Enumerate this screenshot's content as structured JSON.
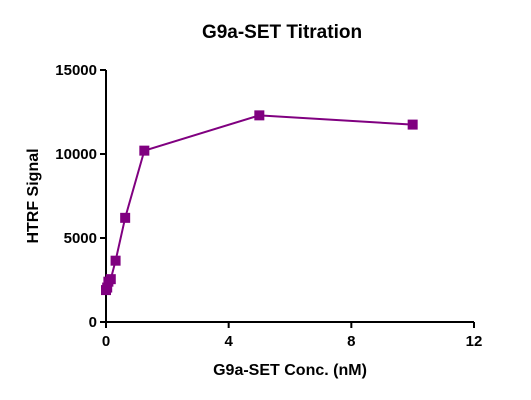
{
  "chart_data": {
    "type": "line",
    "title": "G9a-SET Titration",
    "xlabel": "G9a-SET Conc. (nM)",
    "ylabel": "HTRF Signal",
    "xlim": [
      0,
      12
    ],
    "ylim": [
      0,
      15000
    ],
    "x_ticks": [
      0,
      4,
      8,
      12
    ],
    "y_ticks": [
      0,
      5000,
      10000,
      15000
    ],
    "grid": false,
    "series": [
      {
        "color": "#800080",
        "marker": "square",
        "x": [
          0,
          0.039,
          0.078,
          0.156,
          0.3125,
          0.625,
          1.25,
          5,
          10
        ],
        "y": [
          1900,
          2050,
          2400,
          2550,
          3650,
          6200,
          10200,
          12300,
          11750
        ]
      }
    ]
  }
}
